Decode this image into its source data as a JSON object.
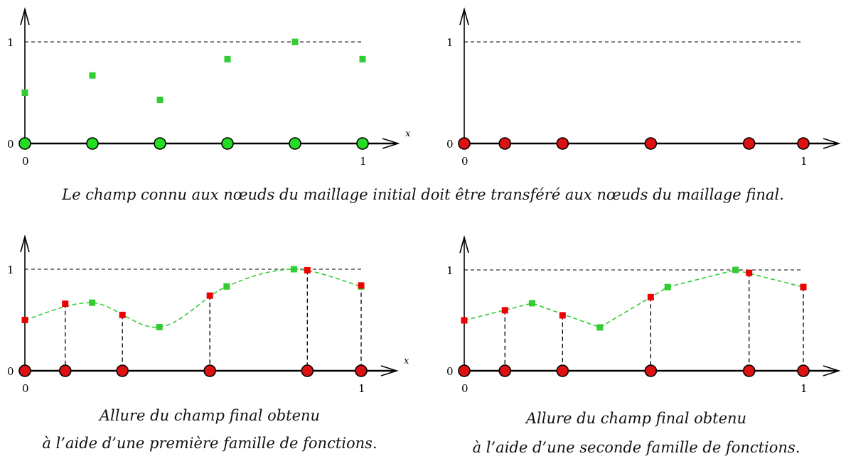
{
  "captions": {
    "top": "Le champ connu aux nœuds du maillage initial doit être transféré aux nœuds du maillage final.",
    "left_line1": "Allure du champ final obtenu",
    "left_line2": "à l’aide d’une première famille de fonctions.",
    "right_line1": "Allure du champ final obtenu",
    "right_line2": "à l’aide d’une seconde famille de fonctions."
  },
  "axis_text": {
    "y0": "0",
    "y1": "1",
    "x0": "0",
    "x1": "1",
    "xvar": "x"
  },
  "colors": {
    "green_fill": "#33cc33",
    "green_node": "#22dd22",
    "red": "#ee0000",
    "red_node": "#dd1111"
  },
  "chart_data": [
    {
      "type": "scatter",
      "title": "",
      "xlabel": "x",
      "xlim": [
        0,
        1
      ],
      "ylim": [
        0,
        1
      ],
      "nodes": {
        "color": "green",
        "x": [
          0,
          0.2,
          0.4,
          0.6,
          0.8,
          1.0
        ]
      },
      "series": [
        {
          "color": "green",
          "x": [
            0,
            0.2,
            0.4,
            0.6,
            0.8,
            1.0
          ],
          "y": [
            0.5,
            0.67,
            0.43,
            0.83,
            1.0,
            0.83
          ]
        }
      ]
    },
    {
      "type": "scatter",
      "title": "",
      "xlabel": "x",
      "xlim": [
        0,
        1
      ],
      "ylim": [
        0,
        1
      ],
      "nodes": {
        "color": "red",
        "x": [
          0,
          0.12,
          0.29,
          0.55,
          0.84,
          1.0
        ]
      },
      "series": []
    },
    {
      "type": "line",
      "title": "",
      "xlabel": "x",
      "xlim": [
        0,
        1
      ],
      "ylim": [
        0,
        1
      ],
      "interpolation": "smooth",
      "nodes": {
        "color": "red",
        "x": [
          0,
          0.12,
          0.29,
          0.55,
          0.84,
          1.0
        ]
      },
      "series": [
        {
          "color": "green",
          "role": "initial",
          "x": [
            0,
            0.2,
            0.4,
            0.6,
            0.8,
            1.0
          ],
          "y": [
            0.5,
            0.67,
            0.43,
            0.83,
            1.0,
            0.83
          ]
        },
        {
          "color": "red",
          "role": "transferred",
          "x": [
            0,
            0.12,
            0.29,
            0.55,
            0.84,
            1.0
          ],
          "y": [
            0.5,
            0.66,
            0.55,
            0.74,
            0.99,
            0.84
          ]
        }
      ]
    },
    {
      "type": "line",
      "title": "",
      "xlabel": "x",
      "xlim": [
        0,
        1
      ],
      "ylim": [
        0,
        1
      ],
      "interpolation": "linear",
      "nodes": {
        "color": "red",
        "x": [
          0,
          0.12,
          0.29,
          0.55,
          0.84,
          1.0
        ]
      },
      "series": [
        {
          "color": "green",
          "role": "initial",
          "x": [
            0,
            0.2,
            0.4,
            0.6,
            0.8,
            1.0
          ],
          "y": [
            0.5,
            0.67,
            0.43,
            0.83,
            1.0,
            0.83
          ]
        },
        {
          "color": "red",
          "role": "transferred",
          "x": [
            0,
            0.12,
            0.29,
            0.55,
            0.84,
            1.0
          ],
          "y": [
            0.5,
            0.6,
            0.55,
            0.73,
            0.97,
            0.83
          ]
        }
      ]
    }
  ]
}
